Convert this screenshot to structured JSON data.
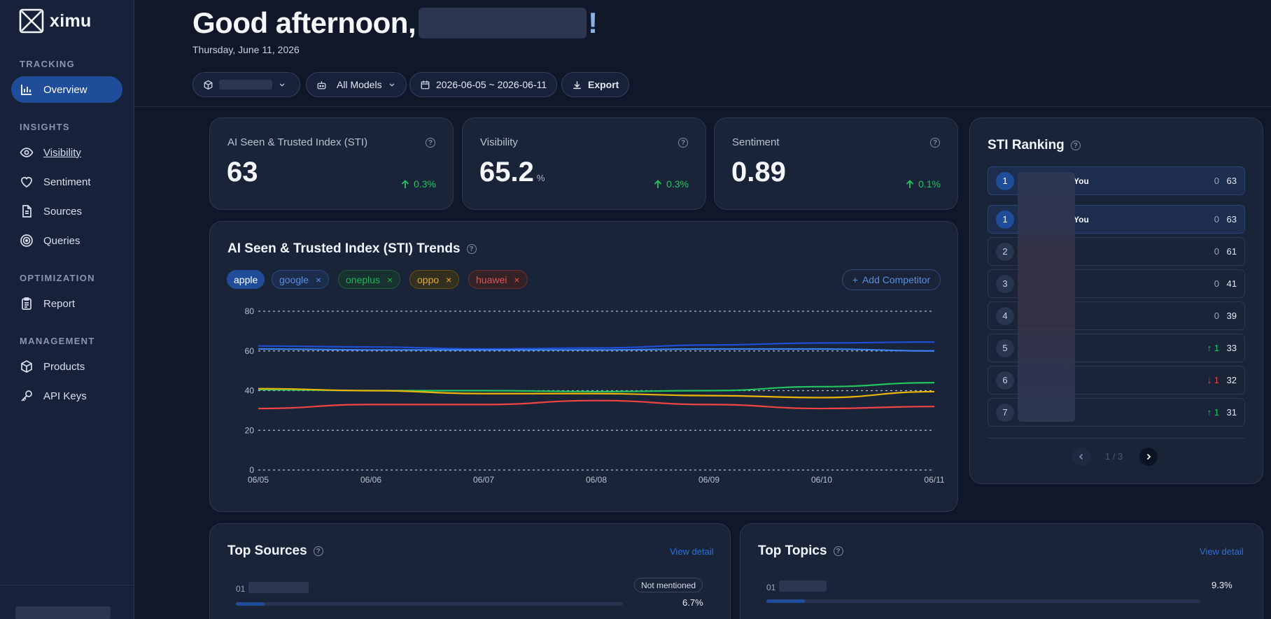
{
  "app": {
    "name": "ximu"
  },
  "sidebar": {
    "sections": [
      {
        "label": "TRACKING"
      },
      {
        "label": "INSIGHTS"
      },
      {
        "label": "OPTIMIZATION"
      },
      {
        "label": "MANAGEMENT"
      }
    ],
    "items": [
      {
        "label": "Overview",
        "icon": "bar-chart-icon"
      },
      {
        "label": "Visibility",
        "icon": "eye-icon"
      },
      {
        "label": "Sentiment",
        "icon": "heart-icon"
      },
      {
        "label": "Sources",
        "icon": "document-icon"
      },
      {
        "label": "Queries",
        "icon": "target-icon"
      },
      {
        "label": "Report",
        "icon": "clipboard-icon"
      },
      {
        "label": "Products",
        "icon": "box-icon"
      },
      {
        "label": "API Keys",
        "icon": "key-icon"
      }
    ]
  },
  "header": {
    "greeting": "Good afternoon,",
    "exclamation": "!",
    "date": "Thursday, June 11, 2026",
    "models_label": "All Models",
    "date_range": "2026-06-05 ~ 2026-06-11",
    "export_label": "Export"
  },
  "metrics": [
    {
      "title": "AI Seen & Trusted Index (STI)",
      "value": "63",
      "unit": "",
      "delta": "0.3%"
    },
    {
      "title": "Visibility",
      "value": "65.2",
      "unit": "%",
      "delta": "0.3%"
    },
    {
      "title": "Sentiment",
      "value": "0.89",
      "unit": "",
      "delta": "0.1%"
    }
  ],
  "trends": {
    "title": "AI Seen & Trusted Index (STI) Trends",
    "add_competitor": "Add Competitor",
    "chips": [
      {
        "label": "apple",
        "removable": false
      },
      {
        "label": "google",
        "removable": true
      },
      {
        "label": "oneplus",
        "removable": true
      },
      {
        "label": "oppo",
        "removable": true
      },
      {
        "label": "huawei",
        "removable": true
      }
    ]
  },
  "chart_data": {
    "type": "line",
    "title": "AI Seen & Trusted Index (STI) Trends",
    "xlabel": "",
    "ylabel": "",
    "x": [
      "06/05",
      "06/06",
      "06/07",
      "06/08",
      "06/09",
      "06/10",
      "06/11"
    ],
    "ylim": [
      0,
      80
    ],
    "yticks": [
      0,
      20,
      40,
      60,
      80
    ],
    "grid": true,
    "series": [
      {
        "name": "apple",
        "color": "#1d4ed8",
        "values": [
          62.5,
          62,
          61,
          61.5,
          63,
          64,
          64.5
        ]
      },
      {
        "name": "google",
        "color": "#3b82f6",
        "values": [
          61,
          60.5,
          60.5,
          60.5,
          61,
          61,
          60
        ]
      },
      {
        "name": "oneplus",
        "color": "#22c55e",
        "values": [
          40.5,
          40,
          40,
          39.5,
          40,
          42,
          44
        ]
      },
      {
        "name": "oppo",
        "color": "#eab308",
        "values": [
          41,
          40,
          38.5,
          38.5,
          37.5,
          36.5,
          39.5
        ]
      },
      {
        "name": "huawei",
        "color": "#ef4444",
        "values": [
          31,
          33,
          33,
          35,
          33,
          31,
          32
        ]
      }
    ]
  },
  "ranking": {
    "title": "STI Ranking",
    "you_label": "You",
    "rows": [
      {
        "rank": "1",
        "you": true,
        "change": "0",
        "dir": "none",
        "score": "63"
      },
      {
        "rank": "1",
        "you": true,
        "change": "0",
        "dir": "none",
        "score": "63"
      },
      {
        "rank": "2",
        "you": false,
        "change": "0",
        "dir": "none",
        "score": "61"
      },
      {
        "rank": "3",
        "you": false,
        "change": "0",
        "dir": "none",
        "score": "41"
      },
      {
        "rank": "4",
        "you": false,
        "change": "0",
        "dir": "none",
        "score": "39"
      },
      {
        "rank": "5",
        "you": false,
        "change": "1",
        "dir": "up",
        "score": "33"
      },
      {
        "rank": "6",
        "you": false,
        "change": "1",
        "dir": "down",
        "score": "32"
      },
      {
        "rank": "7",
        "you": false,
        "change": "1",
        "dir": "up",
        "score": "31"
      }
    ],
    "page_indicator": "1 / 3"
  },
  "top_sources": {
    "title": "Top Sources",
    "view_detail": "View detail",
    "items": [
      {
        "index": "01",
        "badge": "Not mentioned",
        "percent": "6.7%",
        "fraction": 0.067
      }
    ]
  },
  "top_topics": {
    "title": "Top Topics",
    "view_detail": "View detail",
    "items": [
      {
        "index": "01",
        "percent": "9.3%",
        "fraction": 0.093
      }
    ]
  },
  "colors": {
    "accent": "#1f4d9a",
    "positive": "#22c55e",
    "negative": "#ef4444",
    "link": "#2f6fd6"
  }
}
